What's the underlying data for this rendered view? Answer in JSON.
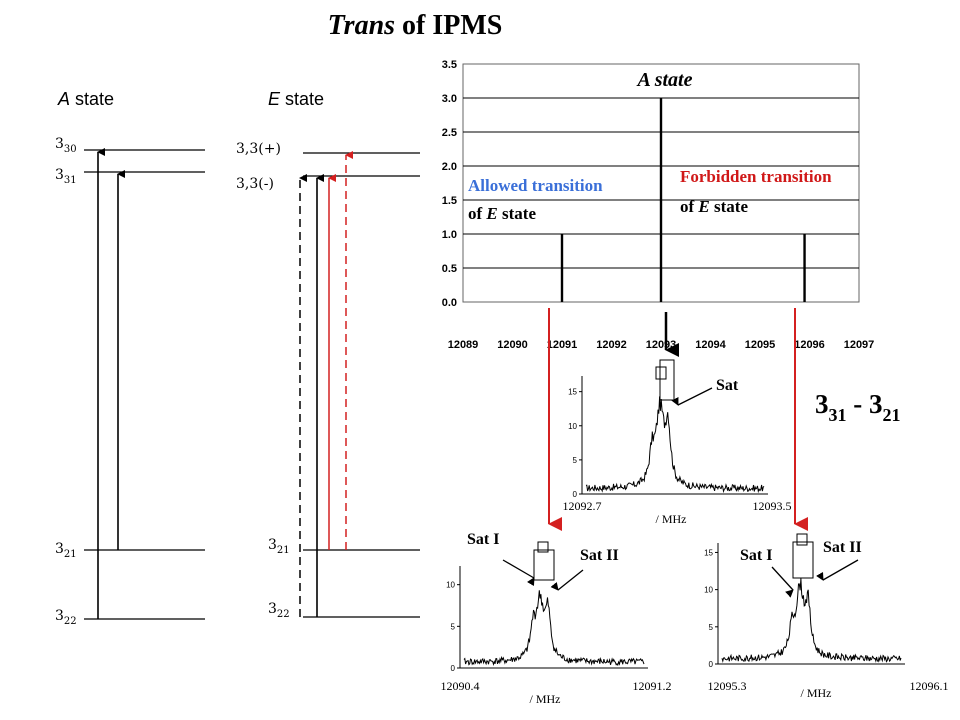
{
  "title": {
    "italic": "Trans",
    "rest": " of IPMS"
  },
  "a_state_diagram": {
    "heading": "A state",
    "levels": [
      {
        "base": "3",
        "sub": "30"
      },
      {
        "base": "3",
        "sub": "31"
      },
      {
        "base": "3",
        "sub": "21"
      },
      {
        "base": "3",
        "sub": "22"
      }
    ]
  },
  "e_state_diagram": {
    "heading": "E state",
    "levels": [
      {
        "label": "3,3(+)"
      },
      {
        "label": "3,3(-)"
      },
      {
        "base": "3",
        "sub": "21"
      },
      {
        "base": "3",
        "sub": "22"
      }
    ]
  },
  "transition_label": {
    "base": "3",
    "sub1": "31",
    "mid": " - 3",
    "sub2": "21"
  },
  "spectrum": {
    "title": "A state",
    "allowed_label_1": "Allowed transition",
    "allowed_label_2": "of E state",
    "forbidden_label_1": "Forbidden transition",
    "forbidden_label_2": "of E state",
    "x_ticks": [
      "12089",
      "12090",
      "12091",
      "12092",
      "12093",
      "12094",
      "12095",
      "12096",
      "12097"
    ],
    "y_ticks": [
      "0.0",
      "0.5",
      "1.0",
      "1.5",
      "2.0",
      "2.5",
      "3.0",
      "3.5"
    ]
  },
  "chart_data": [
    {
      "type": "bar",
      "title": "A state",
      "xlabel": "",
      "ylabel": "",
      "xlim": [
        12089,
        12097
      ],
      "ylim": [
        0,
        3.5
      ],
      "x": [
        12091.0,
        12093.0,
        12095.9
      ],
      "values": [
        1.0,
        3.0,
        1.0
      ],
      "grid": true
    },
    {
      "type": "line",
      "xlabel": "/ MHz",
      "x_range": [
        "12092.7",
        "12093.5"
      ],
      "y_ticks": [
        "0",
        "5",
        "10",
        "15"
      ],
      "annotations": [
        "Sat"
      ]
    },
    {
      "type": "line",
      "xlabel": "/ MHz",
      "x_range": [
        "12090.4",
        "12091.2"
      ],
      "y_ticks": [
        "0",
        "5",
        "10"
      ],
      "annotations": [
        "Sat I",
        "Sat II"
      ]
    },
    {
      "type": "line",
      "xlabel": "/ MHz",
      "x_range": [
        "12095.3",
        "12096.1"
      ],
      "y_ticks": [
        "0",
        "5",
        "10",
        "15"
      ],
      "annotations": [
        "Sat I",
        "Sat II"
      ]
    }
  ],
  "colors": {
    "allowed": "#3a6fd8",
    "forbidden": "#d01818",
    "arrow_red": "#d42020"
  }
}
